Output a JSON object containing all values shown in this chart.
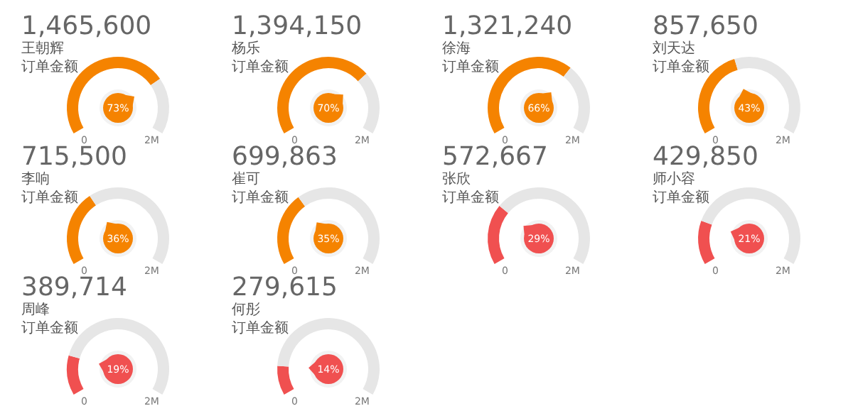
{
  "chart_data": [
    {
      "type": "donut",
      "title": "1,465,600",
      "subtitle": "王朝辉",
      "annotations": [
        "订单金额",
        "0",
        "2M",
        "73%"
      ],
      "categories": [
        null,
        null
      ],
      "values": [
        73,
        27
      ],
      "colors": [
        "#f58300",
        "#e6e6e6"
      ]
    },
    {
      "type": "donut",
      "title": "1,394,150",
      "subtitle": "杨乐",
      "annotations": [
        "订单金额",
        "0",
        "2M",
        "70%"
      ],
      "categories": [
        null,
        null
      ],
      "values": [
        70,
        30
      ],
      "colors": [
        "#f58300",
        "#e6e6e6"
      ]
    },
    {
      "type": "donut",
      "title": "1,321,240",
      "subtitle": "徐海",
      "annotations": [
        "订单金额",
        "0",
        "2M",
        "66%"
      ],
      "categories": [
        null,
        null
      ],
      "values": [
        66,
        34
      ],
      "colors": [
        "#f58300",
        "#e6e6e6"
      ]
    },
    {
      "type": "donut",
      "title": "857,650",
      "subtitle": "刘天达",
      "annotations": [
        "订单金额",
        "0",
        "2M",
        "43%"
      ],
      "categories": [
        null,
        null
      ],
      "values": [
        43,
        57
      ],
      "colors": [
        "#f58300",
        "#e6e6e6"
      ]
    },
    {
      "type": "donut",
      "title": "715,500",
      "subtitle": "李响",
      "annotations": [
        "订单金额",
        "0",
        "2M",
        "36%"
      ],
      "categories": [
        null,
        null
      ],
      "values": [
        36,
        64
      ],
      "colors": [
        "#f58300",
        "#e6e6e6"
      ]
    },
    {
      "type": "donut",
      "title": "699,863",
      "subtitle": "崔可",
      "annotations": [
        "订单金额",
        "0",
        "2M",
        "35%"
      ],
      "categories": [
        null,
        null
      ],
      "values": [
        35,
        65
      ],
      "colors": [
        "#f58300",
        "#e6e6e6"
      ]
    },
    {
      "type": "donut",
      "title": "572,667",
      "subtitle": "张欣",
      "annotations": [
        "订单金额",
        "0",
        "2M",
        "29%"
      ],
      "categories": [
        null,
        null
      ],
      "values": [
        29,
        71
      ],
      "colors": [
        "#f05050",
        "#e6e6e6"
      ]
    },
    {
      "type": "donut",
      "title": "429,850",
      "subtitle": "师小容",
      "annotations": [
        "订单金额",
        "0",
        "2M",
        "21%"
      ],
      "categories": [
        null,
        null
      ],
      "values": [
        21,
        79
      ],
      "colors": [
        "#f05050",
        "#e6e6e6"
      ]
    },
    {
      "type": "donut",
      "title": "389,714",
      "subtitle": "周峰",
      "annotations": [
        "订单金额",
        "0",
        "2M",
        "19%"
      ],
      "categories": [
        null,
        null
      ],
      "values": [
        19,
        81
      ],
      "colors": [
        "#f05050",
        "#e6e6e6"
      ]
    },
    {
      "type": "donut",
      "title": "279,615",
      "subtitle": "何彤",
      "annotations": [
        "订单金额",
        "0",
        "2M",
        "14%"
      ],
      "categories": [
        null,
        null
      ],
      "values": [
        14,
        86
      ],
      "colors": [
        "#f05050",
        "#e6e6e6"
      ]
    }
  ]
}
